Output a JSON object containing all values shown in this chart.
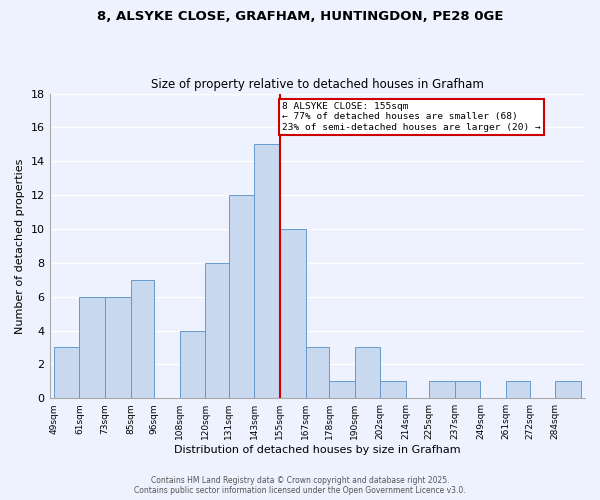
{
  "title": "8, ALSYKE CLOSE, GRAFHAM, HUNTINGDON, PE28 0GE",
  "subtitle": "Size of property relative to detached houses in Grafham",
  "xlabel": "Distribution of detached houses by size in Grafham",
  "ylabel": "Number of detached properties",
  "bin_edges": [
    49,
    61,
    73,
    85,
    96,
    108,
    120,
    131,
    143,
    155,
    167,
    178,
    190,
    202,
    214,
    225,
    237,
    249,
    261,
    272,
    284
  ],
  "bin_labels": [
    "49sqm",
    "61sqm",
    "73sqm",
    "85sqm",
    "96sqm",
    "108sqm",
    "120sqm",
    "131sqm",
    "143sqm",
    "155sqm",
    "167sqm",
    "178sqm",
    "190sqm",
    "202sqm",
    "214sqm",
    "225sqm",
    "237sqm",
    "249sqm",
    "261sqm",
    "272sqm",
    "284sqm"
  ],
  "counts": [
    3,
    6,
    6,
    7,
    0,
    4,
    8,
    12,
    15,
    10,
    3,
    1,
    3,
    1,
    0,
    1,
    1,
    0,
    1,
    0,
    1
  ],
  "bar_color": "#c8d8ee",
  "bar_edge_color": "#6699cc",
  "property_line_x": 155,
  "property_line_color": "#cc0000",
  "annotation_title": "8 ALSYKE CLOSE: 155sqm",
  "annotation_line1": "← 77% of detached houses are smaller (68)",
  "annotation_line2": "23% of semi-detached houses are larger (20) →",
  "annotation_box_color": "#ffffff",
  "annotation_box_edge": "#cc0000",
  "background_color": "#eef2ff",
  "grid_color": "#ffffff",
  "ylim": [
    0,
    18
  ],
  "yticks": [
    0,
    2,
    4,
    6,
    8,
    10,
    12,
    14,
    16,
    18
  ],
  "footer_line1": "Contains HM Land Registry data © Crown copyright and database right 2025.",
  "footer_line2": "Contains public sector information licensed under the Open Government Licence v3.0."
}
